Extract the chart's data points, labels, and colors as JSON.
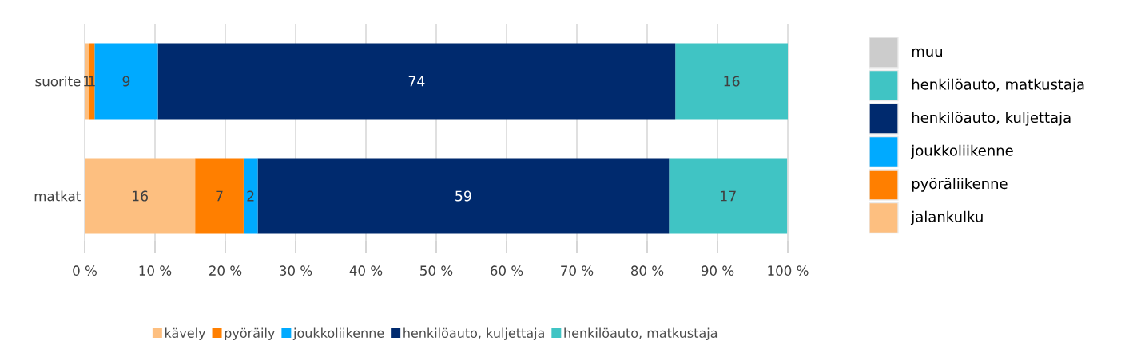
{
  "chart_data": [
    {
      "type": "bar",
      "orientation": "horizontal",
      "stacked": true,
      "categories": [
        "suorite",
        "matkat"
      ],
      "series": [
        {
          "name": "kävely",
          "color": "#fdbf80",
          "values": [
            0.6,
            15.7
          ],
          "value_labels": [
            "1",
            "16"
          ]
        },
        {
          "name": "pyöräily",
          "color": "#ff7f00",
          "values": [
            0.8,
            6.9
          ],
          "value_labels": [
            "1",
            "7"
          ]
        },
        {
          "name": "joukkoliikenne",
          "color": "#00aaff",
          "values": [
            9.0,
            2.0
          ],
          "value_labels": [
            "9",
            "2"
          ]
        },
        {
          "name": "henkilöauto, kuljettaja",
          "color": "#002a6e",
          "values": [
            73.6,
            58.5
          ],
          "value_labels": [
            "74",
            "59"
          ]
        },
        {
          "name": "henkilöauto, matkustaja",
          "color": "#40c4c4",
          "values": [
            16.0,
            16.8
          ],
          "value_labels": [
            "16",
            "17"
          ]
        }
      ],
      "xlim": [
        0,
        100
      ],
      "xticks": [
        {
          "value": 0,
          "label": "0 %"
        },
        {
          "value": 10,
          "label": "10 %"
        },
        {
          "value": 20,
          "label": "20 %"
        },
        {
          "value": 30,
          "label": "30 %"
        },
        {
          "value": 40,
          "label": "40 %"
        },
        {
          "value": 50,
          "label": "50 %"
        },
        {
          "value": 60,
          "label": "60 %"
        },
        {
          "value": 70,
          "label": "70 %"
        },
        {
          "value": 80,
          "label": "80 %"
        },
        {
          "value": 90,
          "label": "90 %"
        },
        {
          "value": 100,
          "label": "100 %"
        }
      ],
      "grid": "x",
      "legend": "bottom"
    },
    {
      "type": "other",
      "categories": [
        "muu",
        "henkilöauto, matkustaja",
        "henkilöauto, kuljettaja",
        "joukkoliikenne",
        "pyöräliikenne",
        "jalankulku"
      ],
      "colors": [
        "#cccccc",
        "#40c4c4",
        "#002a6e",
        "#00aaff",
        "#ff7f00",
        "#fdbf80"
      ]
    }
  ]
}
